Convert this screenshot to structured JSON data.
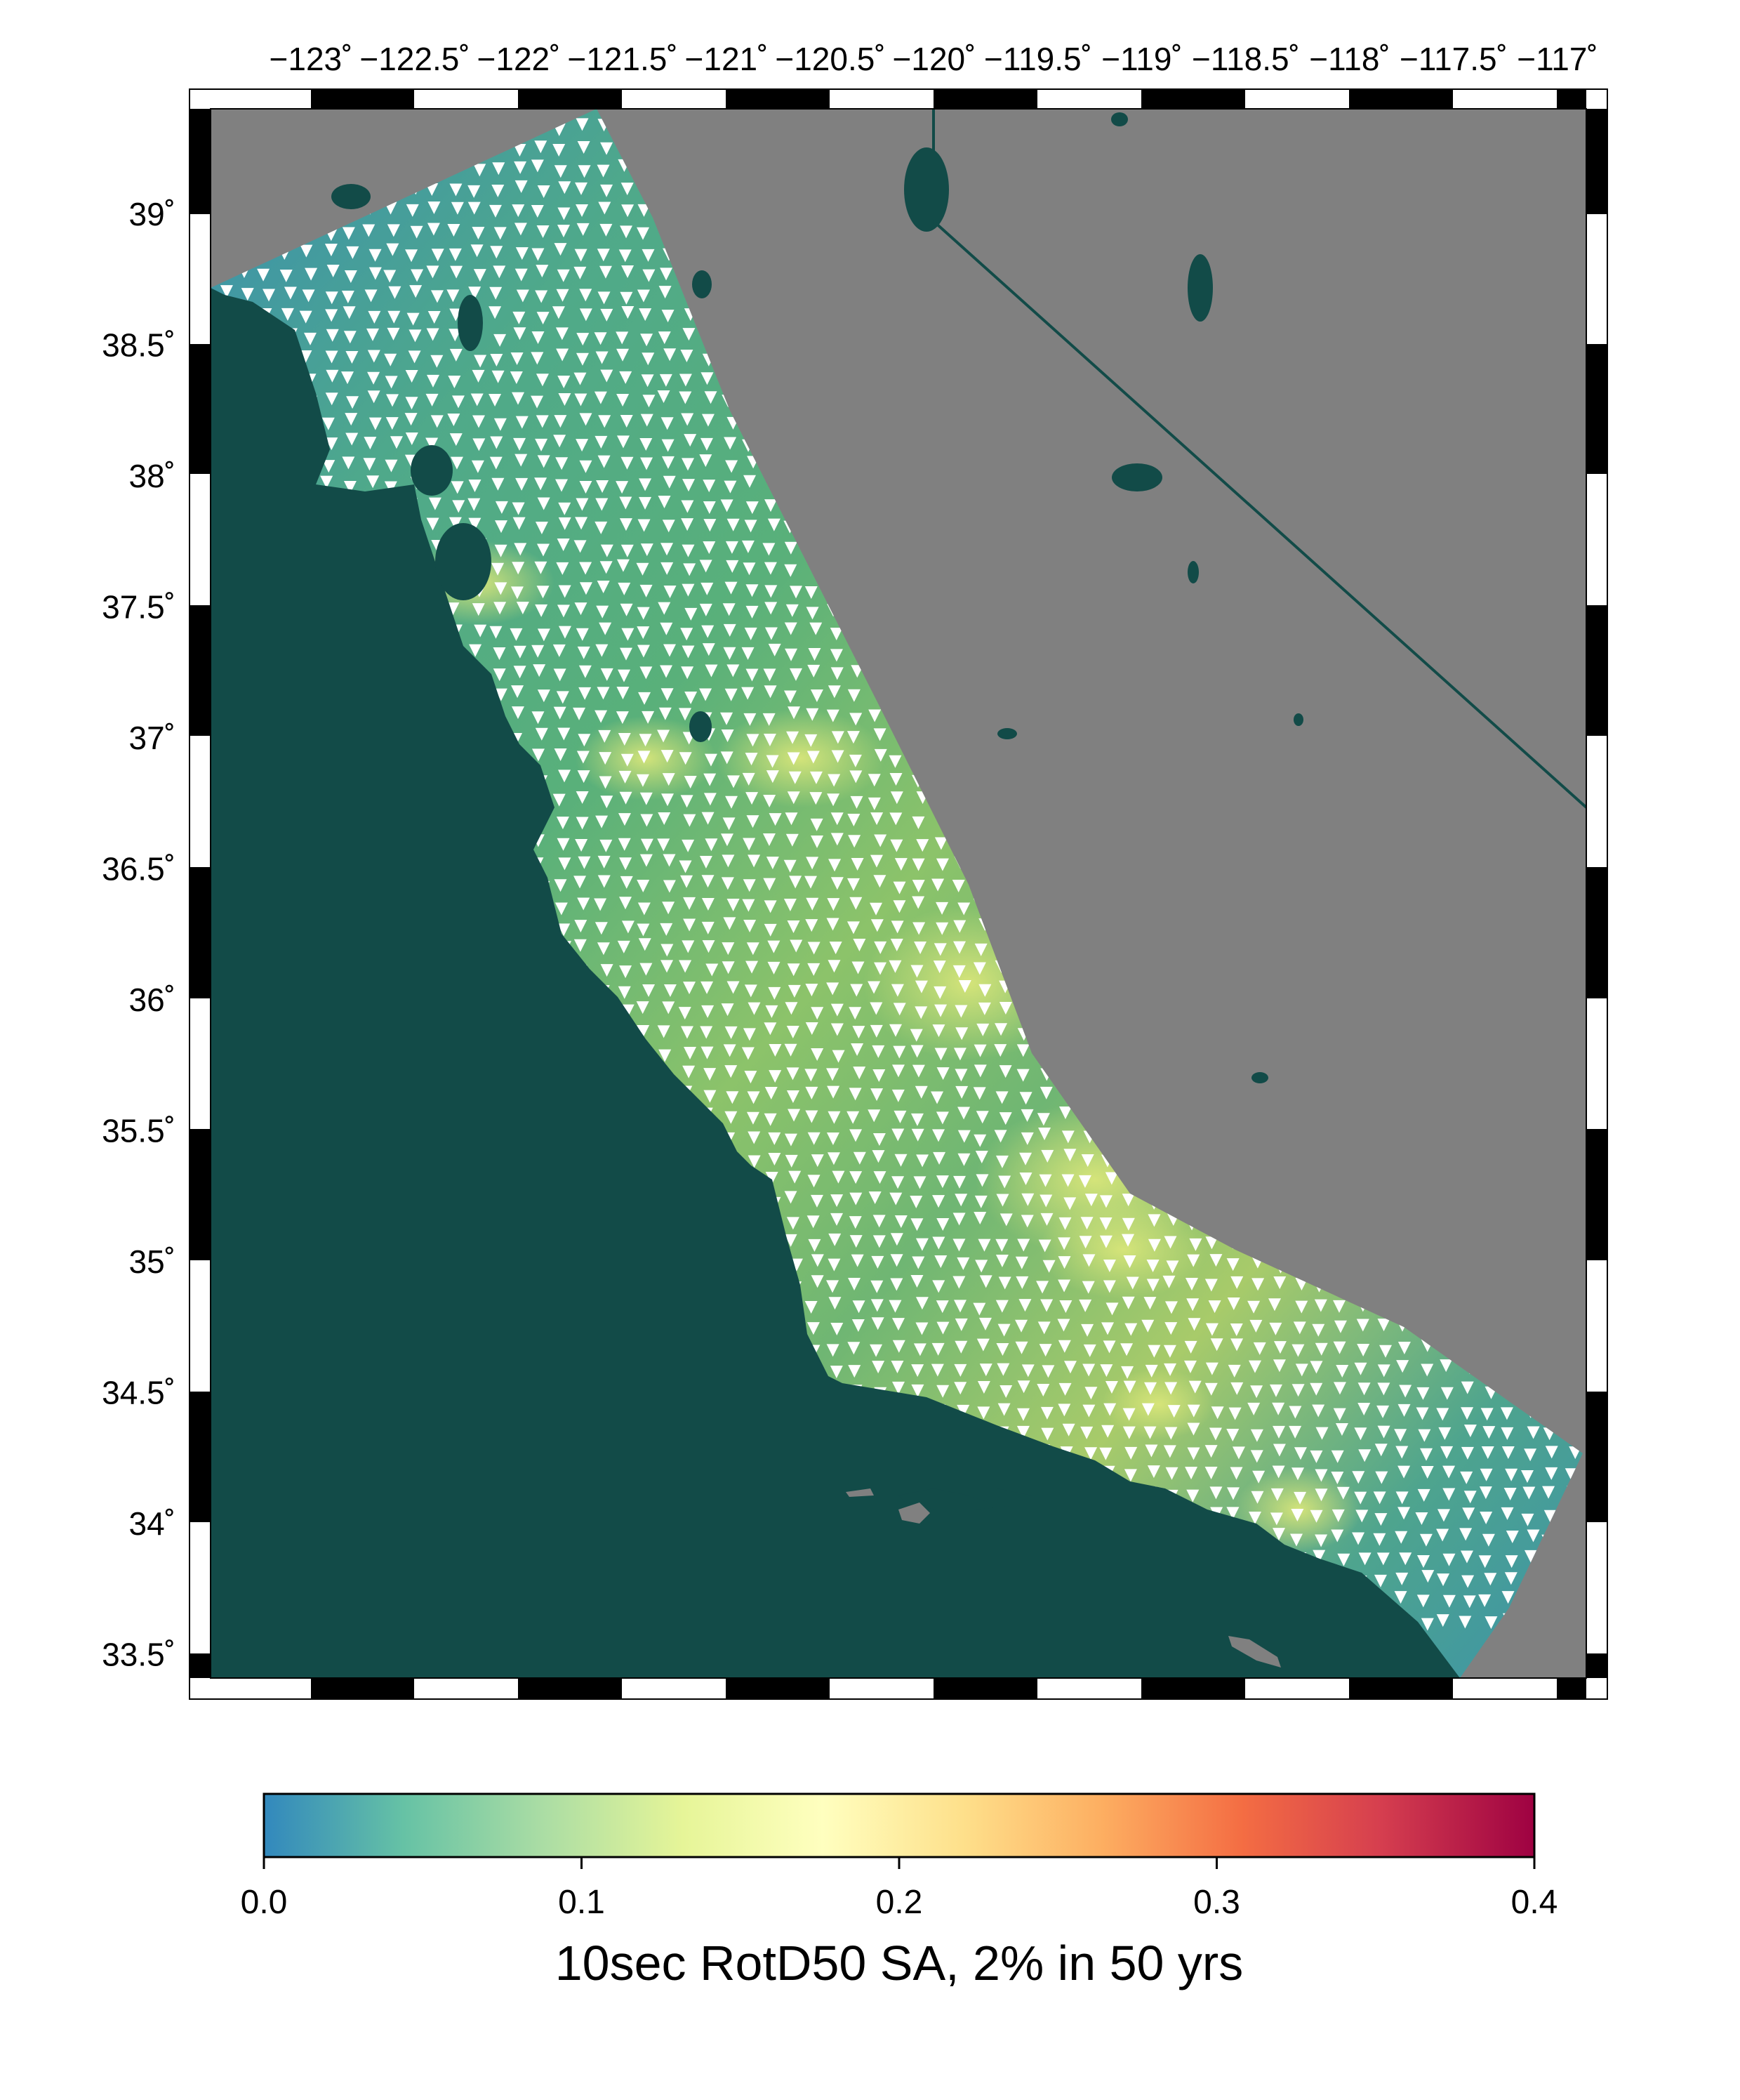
{
  "map": {
    "top_ticks": [
      "−123˚",
      "−122.5˚",
      "−122˚",
      "−121.5˚",
      "−121˚",
      "−120.5˚",
      "−120˚",
      "−119.5˚",
      "−119˚",
      "−118.5˚",
      "−118˚",
      "−117.5˚",
      "−117˚"
    ],
    "left_ticks": [
      "39˚",
      "38.5˚",
      "38˚",
      "37.5˚",
      "37˚",
      "36.5˚",
      "36˚",
      "35.5˚",
      "35˚",
      "34.5˚",
      "34˚",
      "33.5˚"
    ],
    "colors": {
      "ocean": "#124b48",
      "land": "#808080",
      "stations": "#ffffff",
      "border": "#124b48"
    }
  },
  "colorbar": {
    "labels": [
      "0.0",
      "0.1",
      "0.2",
      "0.3",
      "0.4"
    ],
    "title": "10sec RotD50 SA, 2% in 50 yrs",
    "stops": [
      "#3288bd",
      "#66c2a5",
      "#abdda4",
      "#e6f598",
      "#ffffbf",
      "#fee08b",
      "#fdae61",
      "#f46d43",
      "#d53e4f",
      "#9e0142"
    ]
  }
}
